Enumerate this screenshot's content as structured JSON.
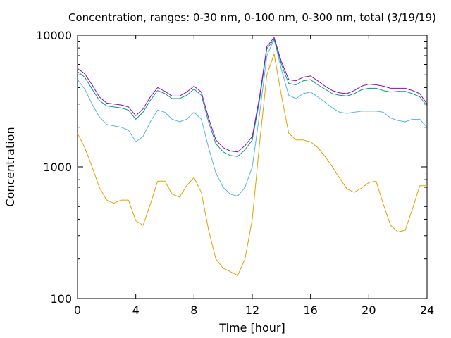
{
  "chart_data": {
    "type": "line",
    "title": "Concentration, ranges: 0-30 nm, 0-100 nm, 0-300 nm, total (3/19/19)",
    "xlabel": "Time [hour]",
    "ylabel": "Concentration",
    "xlim": [
      0,
      24
    ],
    "ylim": [
      100,
      10000
    ],
    "yscale": "log",
    "grid": false,
    "x_ticks": [
      0,
      4,
      8,
      12,
      16,
      20,
      24
    ],
    "x_tick_labels": [
      "0",
      "4",
      "8",
      "12",
      "16",
      "20",
      "24"
    ],
    "y_ticks": [
      100,
      1000,
      10000
    ],
    "y_tick_labels": [
      "100",
      "1000",
      "10000"
    ],
    "x": [
      0,
      0.5,
      1,
      1.5,
      2,
      2.5,
      3,
      3.5,
      4,
      4.5,
      5,
      5.5,
      6,
      6.5,
      7,
      7.5,
      8,
      8.5,
      9,
      9.5,
      10,
      10.5,
      11,
      11.5,
      12,
      12.5,
      13,
      13.5,
      14,
      14.5,
      15,
      15.5,
      16,
      16.5,
      17,
      17.5,
      18,
      18.5,
      19,
      19.5,
      20,
      20.5,
      21,
      21.5,
      22,
      22.5,
      23,
      23.5,
      24
    ],
    "series": [
      {
        "color": "#e69f00",
        "values": [
          1800,
          1400,
          1000,
          700,
          560,
          530,
          560,
          560,
          390,
          360,
          520,
          780,
          780,
          620,
          590,
          720,
          830,
          640,
          330,
          200,
          170,
          160,
          150,
          200,
          400,
          1500,
          5000,
          7200,
          3500,
          1800,
          1600,
          1600,
          1550,
          1400,
          1200,
          1000,
          820,
          680,
          640,
          690,
          760,
          780,
          520,
          360,
          320,
          330,
          480,
          720,
          720
        ]
      },
      {
        "color": "#56b4e9",
        "values": [
          4600,
          3900,
          3000,
          2400,
          2100,
          2050,
          2000,
          1900,
          1550,
          1700,
          2200,
          2700,
          2600,
          2300,
          2200,
          2300,
          2600,
          2300,
          1400,
          900,
          700,
          620,
          600,
          700,
          1000,
          2500,
          7000,
          9300,
          5500,
          3500,
          3300,
          3600,
          3700,
          3400,
          3100,
          2800,
          2600,
          2550,
          2600,
          2650,
          2650,
          2650,
          2600,
          2350,
          2250,
          2200,
          2300,
          2300,
          2000
        ]
      },
      {
        "color": "#009e73",
        "values": [
          5300,
          4800,
          3900,
          3200,
          2900,
          2850,
          2800,
          2700,
          2300,
          2600,
          3200,
          3800,
          3600,
          3300,
          3300,
          3500,
          3900,
          3500,
          2200,
          1500,
          1300,
          1220,
          1200,
          1350,
          1600,
          3200,
          7900,
          9300,
          6000,
          4300,
          4200,
          4500,
          4600,
          4200,
          3900,
          3600,
          3500,
          3450,
          3600,
          3850,
          3950,
          3950,
          3800,
          3700,
          3750,
          3750,
          3600,
          3400,
          2900
        ]
      },
      {
        "color": "#9400d3",
        "values": [
          5600,
          5100,
          4200,
          3400,
          3050,
          3000,
          2950,
          2850,
          2450,
          2750,
          3400,
          4000,
          3750,
          3450,
          3450,
          3700,
          4100,
          3700,
          2350,
          1600,
          1400,
          1320,
          1300,
          1450,
          1700,
          3400,
          8200,
          9600,
          6300,
          4600,
          4500,
          4800,
          4900,
          4500,
          4100,
          3800,
          3650,
          3600,
          3800,
          4100,
          4250,
          4200,
          4100,
          3950,
          3950,
          3950,
          3800,
          3600,
          3000
        ]
      }
    ]
  }
}
